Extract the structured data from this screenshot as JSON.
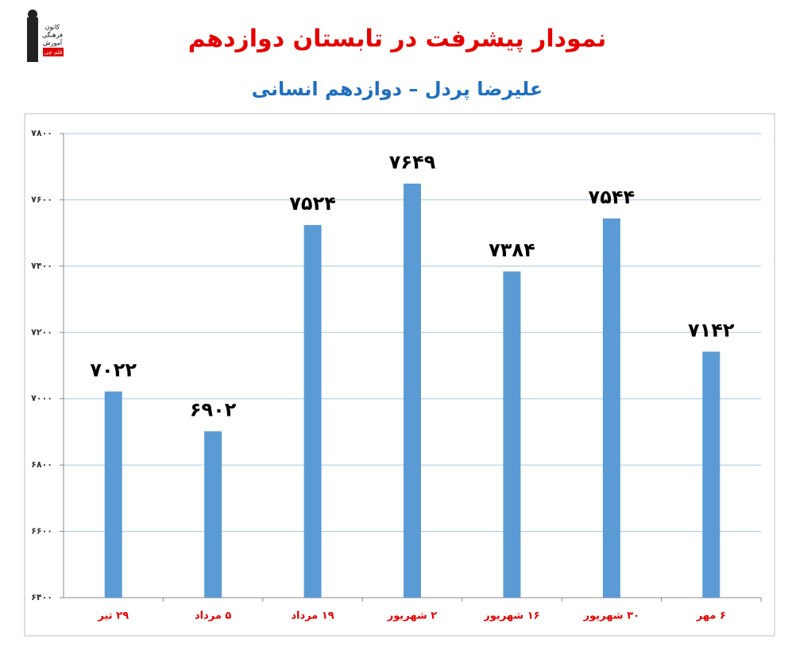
{
  "logo": [
    "کانون",
    "فرهنگی",
    "آموزش",
    "قلم چی"
  ],
  "chart_data": {
    "type": "bar",
    "title": "نمودار پیشرفت در تابستان دوازدهم",
    "subtitle": "علیرضا پردل – دوازدهم انسانی",
    "categories": [
      "۲۹ تیر",
      "۵ مرداد",
      "۱۹ مرداد",
      "۲ شهریور",
      "۱۶ شهریور",
      "۳۰ شهریور",
      "۶ مهر"
    ],
    "values": [
      7022,
      6902,
      7524,
      7649,
      7384,
      7544,
      7142
    ],
    "value_labels": [
      "۷۰۲۲",
      "۶۹۰۲",
      "۷۵۲۴",
      "۷۶۴۹",
      "۷۳۸۴",
      "۷۵۴۴",
      "۷۱۴۲"
    ],
    "color": "#5b9bd5",
    "ylim": [
      6400,
      7800
    ],
    "yticks": [
      {
        "value": 6400,
        "label": "۶۴۰۰"
      },
      {
        "value": 6600,
        "label": "۶۶۰۰"
      },
      {
        "value": 6800,
        "label": "۶۸۰۰"
      },
      {
        "value": 7000,
        "label": "۷۰۰۰"
      },
      {
        "value": 7200,
        "label": "۷۲۰۰"
      },
      {
        "value": 7400,
        "label": "۷۴۰۰"
      },
      {
        "value": 7600,
        "label": "۷۶۰۰"
      },
      {
        "value": 7800,
        "label": "۷۸۰۰"
      }
    ],
    "grid": true
  }
}
